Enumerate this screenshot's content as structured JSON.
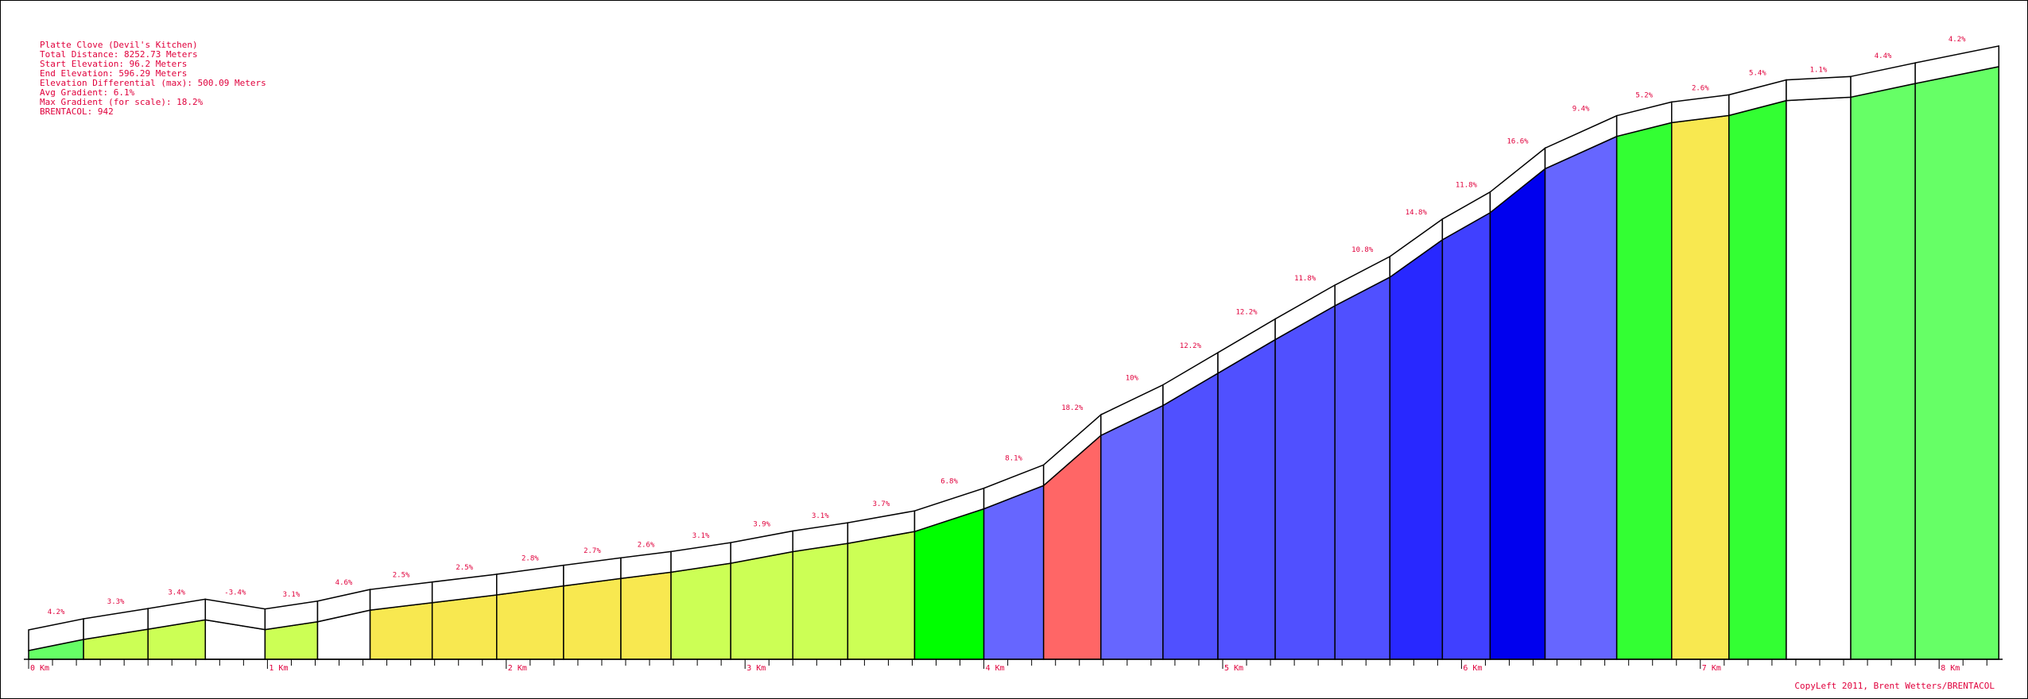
{
  "stats": {
    "lines": [
      "Platte Clove (Devil's Kitchen)",
      "Total Distance: 8252.73 Meters",
      "Start Elevation: 96.2 Meters",
      "End Elevation: 596.29 Meters",
      "Elevation Differential (max): 500.09 Meters",
      "Avg Gradient: 6.1%",
      "Max Gradient (for scale): 18.2%",
      "BRENTACOL: 942"
    ]
  },
  "credit": "CopyLeft 2011, Brent Wetters/BRENTACOL",
  "colors": {
    "text": "#e0003c",
    "outline": "#000000"
  },
  "chart_data": {
    "type": "area",
    "title": "Platte Clove (Devil's Kitchen)",
    "x_unit": "km",
    "y_unit": "m",
    "x_ticks": [
      "0 Km",
      "1 Km",
      "2 Km",
      "3 Km",
      "4 Km",
      "5 Km",
      "6 Km",
      "7 Km",
      "8 Km"
    ],
    "total_distance_km": 8.25273,
    "start_elevation_m": 96.2,
    "end_elevation_m": 596.29,
    "segments": [
      {
        "start_km": 0.0,
        "end_km": 0.23,
        "gradient_label": "4.2%",
        "color": "#66ff66"
      },
      {
        "start_km": 0.23,
        "end_km": 0.5,
        "gradient_label": "3.3%",
        "color": "#ccff55"
      },
      {
        "start_km": 0.5,
        "end_km": 0.74,
        "gradient_label": "3.4%",
        "color": "#ccff55"
      },
      {
        "start_km": 0.74,
        "end_km": 0.99,
        "gradient_label": "-3.4%",
        "color": "#ffffff"
      },
      {
        "start_km": 0.99,
        "end_km": 1.21,
        "gradient_label": "3.1%",
        "color": "#ccff55"
      },
      {
        "start_km": 1.21,
        "end_km": 1.43,
        "gradient_label": "4.6%",
        "color": "#ffffff"
      },
      {
        "start_km": 1.43,
        "end_km": 1.69,
        "gradient_label": "2.5%",
        "color": "#f8e850"
      },
      {
        "start_km": 1.69,
        "end_km": 1.96,
        "gradient_label": "2.5%",
        "color": "#f8e850"
      },
      {
        "start_km": 1.96,
        "end_km": 2.24,
        "gradient_label": "2.8%",
        "color": "#f8e850"
      },
      {
        "start_km": 2.24,
        "end_km": 2.48,
        "gradient_label": "2.7%",
        "color": "#f8e850"
      },
      {
        "start_km": 2.48,
        "end_km": 2.69,
        "gradient_label": "2.6%",
        "color": "#f8e850"
      },
      {
        "start_km": 2.69,
        "end_km": 2.94,
        "gradient_label": "3.1%",
        "color": "#ccff55"
      },
      {
        "start_km": 2.94,
        "end_km": 3.2,
        "gradient_label": "3.9%",
        "color": "#ccff55"
      },
      {
        "start_km": 3.2,
        "end_km": 3.43,
        "gradient_label": "3.1%",
        "color": "#ccff55"
      },
      {
        "start_km": 3.43,
        "end_km": 3.71,
        "gradient_label": "3.7%",
        "color": "#ccff55"
      },
      {
        "start_km": 3.71,
        "end_km": 4.0,
        "gradient_label": "6.8%",
        "color": "#00ff00"
      },
      {
        "start_km": 4.0,
        "end_km": 4.25,
        "gradient_label": "8.1%",
        "color": "#6666ff"
      },
      {
        "start_km": 4.25,
        "end_km": 4.49,
        "gradient_label": "18.2%",
        "color": "#ff6666"
      },
      {
        "start_km": 4.49,
        "end_km": 4.75,
        "gradient_label": "10%",
        "color": "#6666ff"
      },
      {
        "start_km": 4.75,
        "end_km": 4.98,
        "gradient_label": "12.2%",
        "color": "#5050ff"
      },
      {
        "start_km": 4.98,
        "end_km": 5.22,
        "gradient_label": "12.2%",
        "color": "#5050ff"
      },
      {
        "start_km": 5.22,
        "end_km": 5.47,
        "gradient_label": "11.8%",
        "color": "#5050ff"
      },
      {
        "start_km": 5.47,
        "end_km": 5.7,
        "gradient_label": "10.8%",
        "color": "#5050ff"
      },
      {
        "start_km": 5.7,
        "end_km": 5.92,
        "gradient_label": "14.8%",
        "color": "#2828ff"
      },
      {
        "start_km": 5.92,
        "end_km": 6.12,
        "gradient_label": "11.8%",
        "color": "#4040ff"
      },
      {
        "start_km": 6.12,
        "end_km": 6.35,
        "gradient_label": "16.6%",
        "color": "#0000ee"
      },
      {
        "start_km": 6.35,
        "end_km": 6.65,
        "gradient_label": "9.4%",
        "color": "#6666ff"
      },
      {
        "start_km": 6.65,
        "end_km": 6.88,
        "gradient_label": "5.2%",
        "color": "#33ff33"
      },
      {
        "start_km": 6.88,
        "end_km": 7.12,
        "gradient_label": "2.6%",
        "color": "#f8e850"
      },
      {
        "start_km": 7.12,
        "end_km": 7.36,
        "gradient_label": "5.4%",
        "color": "#33ff33"
      },
      {
        "start_km": 7.36,
        "end_km": 7.63,
        "gradient_label": "1.1%",
        "color": "#ffffff"
      },
      {
        "start_km": 7.63,
        "end_km": 7.9,
        "gradient_label": "4.4%",
        "color": "#66ff66"
      },
      {
        "start_km": 7.9,
        "end_km": 8.25,
        "gradient_label": "4.2%",
        "color": "#66ff66"
      }
    ]
  }
}
